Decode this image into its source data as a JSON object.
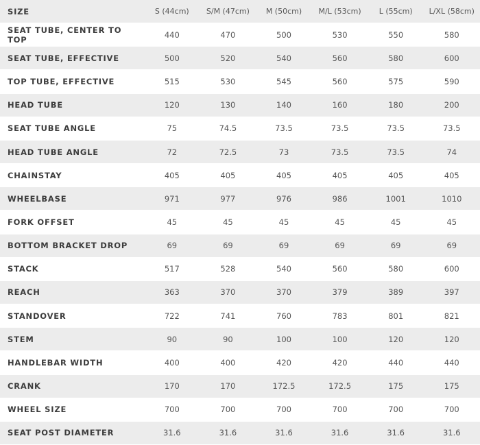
{
  "table": {
    "header": [
      "SIZE",
      "S (44cm)",
      "S/M (47cm)",
      "M (50cm)",
      "M/L (53cm)",
      "L (55cm)",
      "L/XL (58cm)"
    ],
    "rows": [
      [
        "SEAT TUBE, CENTER TO TOP",
        "440",
        "470",
        "500",
        "530",
        "550",
        "580"
      ],
      [
        "SEAT TUBE, EFFECTIVE",
        "500",
        "520",
        "540",
        "560",
        "580",
        "600"
      ],
      [
        "TOP TUBE, EFFECTIVE",
        "515",
        "530",
        "545",
        "560",
        "575",
        "590"
      ],
      [
        "HEAD TUBE",
        "120",
        "130",
        "140",
        "160",
        "180",
        "200"
      ],
      [
        "SEAT TUBE ANGLE",
        "75",
        "74.5",
        "73.5",
        "73.5",
        "73.5",
        "73.5"
      ],
      [
        "HEAD TUBE ANGLE",
        "72",
        "72.5",
        "73",
        "73.5",
        "73.5",
        "74"
      ],
      [
        "CHAINSTAY",
        "405",
        "405",
        "405",
        "405",
        "405",
        "405"
      ],
      [
        "WHEELBASE",
        "971",
        "977",
        "976",
        "986",
        "1001",
        "1010"
      ],
      [
        "FORK OFFSET",
        "45",
        "45",
        "45",
        "45",
        "45",
        "45"
      ],
      [
        "BOTTOM BRACKET DROP",
        "69",
        "69",
        "69",
        "69",
        "69",
        "69"
      ],
      [
        "STACK",
        "517",
        "528",
        "540",
        "560",
        "580",
        "600"
      ],
      [
        "REACH",
        "363",
        "370",
        "370",
        "379",
        "389",
        "397"
      ],
      [
        "STANDOVER",
        "722",
        "741",
        "760",
        "783",
        "801",
        "821"
      ],
      [
        "STEM",
        "90",
        "90",
        "100",
        "100",
        "120",
        "120"
      ],
      [
        "HANDLEBAR WIDTH",
        "400",
        "400",
        "420",
        "420",
        "440",
        "440"
      ],
      [
        "CRANK",
        "170",
        "170",
        "172.5",
        "172.5",
        "175",
        "175"
      ],
      [
        "WHEEL SIZE",
        "700",
        "700",
        "700",
        "700",
        "700",
        "700"
      ],
      [
        "SEAT POST DIAMETER",
        "31.6",
        "31.6",
        "31.6",
        "31.6",
        "31.6",
        "31.6"
      ]
    ]
  }
}
